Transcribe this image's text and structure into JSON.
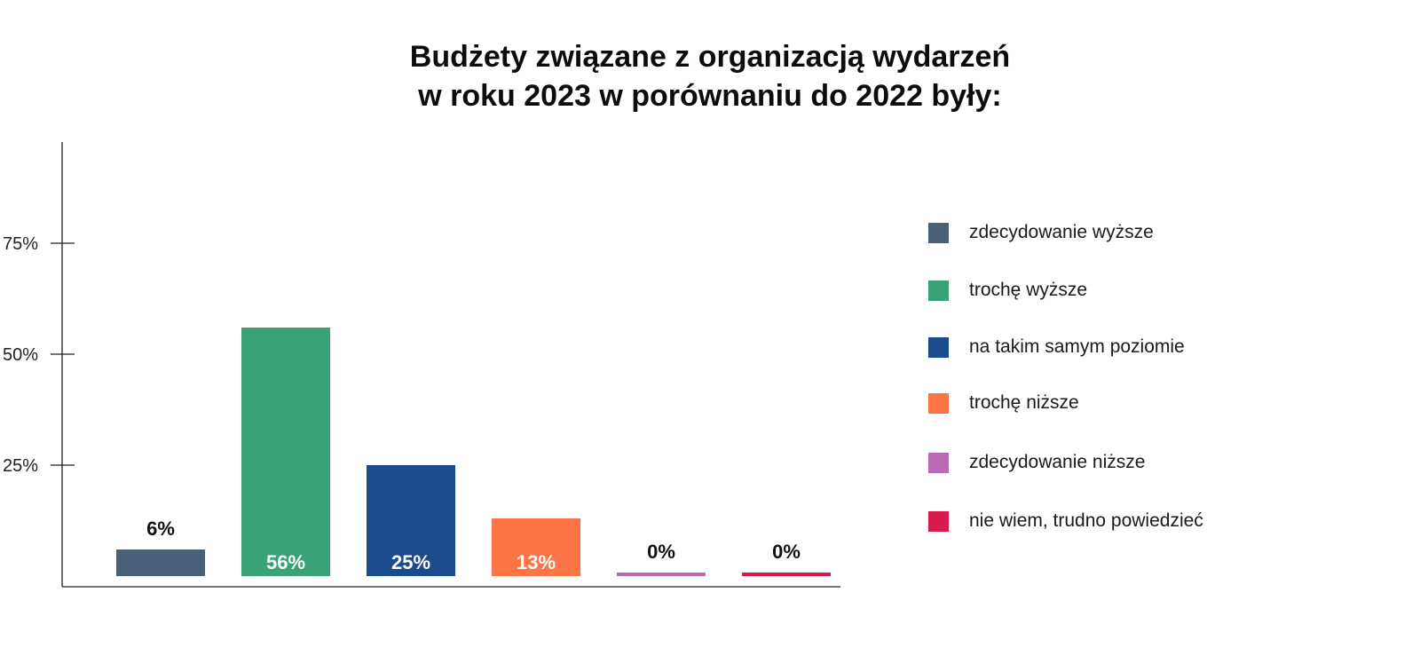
{
  "chart_data": {
    "type": "bar",
    "title_lines": [
      "Budżety związane z organizacją wydarzeń",
      "w roku 2023 w porównaniu do 2022 były:"
    ],
    "categories": [
      "zdecydowanie wyższe",
      "trochę wyższe",
      "na takim samym poziomie",
      "trochę niższe",
      "zdecydowanie niższe",
      "nie wiem, trudno powiedzieć"
    ],
    "values": [
      6,
      56,
      25,
      13,
      0,
      0
    ],
    "value_labels": [
      "6%",
      "56%",
      "25%",
      "13%",
      "0%",
      "0%"
    ],
    "colors": [
      "#4a5f78",
      "#3aa277",
      "#1c4b8d",
      "#fd7447",
      "#b86ab4",
      "#d51c4a"
    ],
    "y_ticks": [
      {
        "value": 25,
        "label": "25%"
      },
      {
        "value": 50,
        "label": "50%"
      },
      {
        "value": 75,
        "label": "75%"
      }
    ],
    "ylim": [
      0,
      100
    ],
    "xlabel": "",
    "ylabel": "",
    "grid": false,
    "legend_position": "right"
  }
}
